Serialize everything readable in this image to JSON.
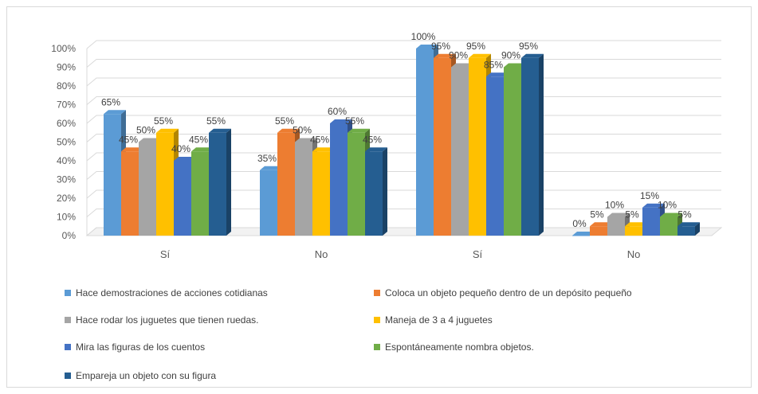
{
  "chart_data": {
    "type": "bar",
    "style": "3d-clustered-column",
    "categories": [
      "Sí",
      "No",
      "Sí",
      "No"
    ],
    "y_ticks": [
      "0%",
      "10%",
      "20%",
      "30%",
      "40%",
      "50%",
      "60%",
      "70%",
      "80%",
      "90%",
      "100%"
    ],
    "ylim": [
      0,
      100
    ],
    "grid": true,
    "legend_position": "bottom",
    "series": [
      {
        "name": "Hace demostraciones de acciones cotidianas",
        "color": "#5B9BD5",
        "values": [
          65,
          35,
          100,
          0
        ],
        "labels": [
          "65%",
          "35%",
          "100%",
          "0%"
        ]
      },
      {
        "name": "Coloca un objeto pequeño dentro de un depósito pequeño",
        "color": "#ED7D31",
        "values": [
          45,
          55,
          95,
          5
        ],
        "labels": [
          "45%",
          "55%",
          "95%",
          "5%"
        ]
      },
      {
        "name": "Hace rodar los juguetes que tienen ruedas.",
        "color": "#A5A5A5",
        "values": [
          50,
          50,
          90,
          10
        ],
        "labels": [
          "50%",
          "50%",
          "90%",
          "10%"
        ]
      },
      {
        "name": "Maneja de 3 a 4 juguetes",
        "color": "#FFC000",
        "values": [
          55,
          45,
          95,
          5
        ],
        "labels": [
          "55%",
          "45%",
          "95%",
          "5%"
        ]
      },
      {
        "name": "Mira las figuras de los cuentos",
        "color": "#4472C4",
        "values": [
          40,
          60,
          85,
          15
        ],
        "labels": [
          "40%",
          "60%",
          "85%",
          "15%"
        ]
      },
      {
        "name": "Espontáneamente nombra objetos.",
        "color": "#70AD47",
        "values": [
          45,
          55,
          90,
          10
        ],
        "labels": [
          "45%",
          "55%",
          "90%",
          "10%"
        ]
      },
      {
        "name": "Empareja un objeto con su figura",
        "color": "#255E91",
        "values": [
          55,
          45,
          95,
          5
        ],
        "labels": [
          "55%",
          "45%",
          "95%",
          "5%"
        ]
      }
    ]
  }
}
